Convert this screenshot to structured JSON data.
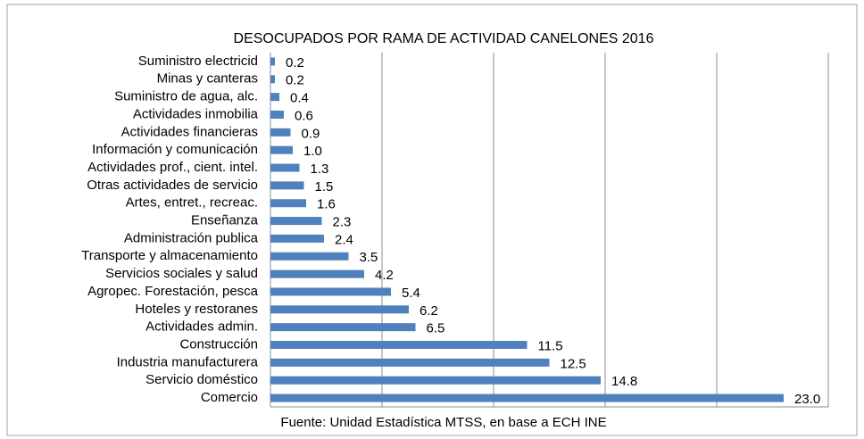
{
  "chart_data": {
    "type": "bar",
    "orientation": "horizontal",
    "title": "DESOCUPADOS POR RAMA DE ACTIVIDAD CANELONES 2016",
    "source": "Fuente: Unidad Estadística MTSS, en base a ECH INE",
    "categories": [
      "Suministro electricid",
      "Minas y canteras",
      "Suministro de agua, alc.",
      "Actividades inmobilia",
      "Actividades financieras",
      "Información y comunicación",
      "Actividades prof., cient. intel.",
      "Otras actividades de servicio",
      "Artes, entret., recreac.",
      "Enseñanza",
      "Administración publica",
      "Transporte y almacenamiento",
      "Servicios sociales y salud",
      "Agropec. Forestación, pesca",
      "Hoteles y restoranes",
      "Actividades admin.",
      "Construcción",
      "Industria manufacturera",
      "Servicio doméstico",
      "Comercio"
    ],
    "values": [
      0.2,
      0.2,
      0.4,
      0.6,
      0.9,
      1.0,
      1.3,
      1.5,
      1.6,
      2.3,
      2.4,
      3.5,
      4.2,
      5.4,
      6.2,
      6.5,
      11.5,
      12.5,
      14.8,
      23.0
    ],
    "value_labels": [
      "0.2",
      "0.2",
      "0.4",
      "0.6",
      "0.9",
      "1.0",
      "1.3",
      "1.5",
      "1.6",
      "2.3",
      "2.4",
      "3.5",
      "4.2",
      "5.4",
      "6.2",
      "6.5",
      "11.5",
      "12.5",
      "14.8",
      "23.0"
    ],
    "color": "#4f81bd",
    "xlim": [
      0,
      25
    ],
    "xticks": [
      0,
      5,
      10,
      15,
      20,
      25
    ],
    "grid": true
  }
}
